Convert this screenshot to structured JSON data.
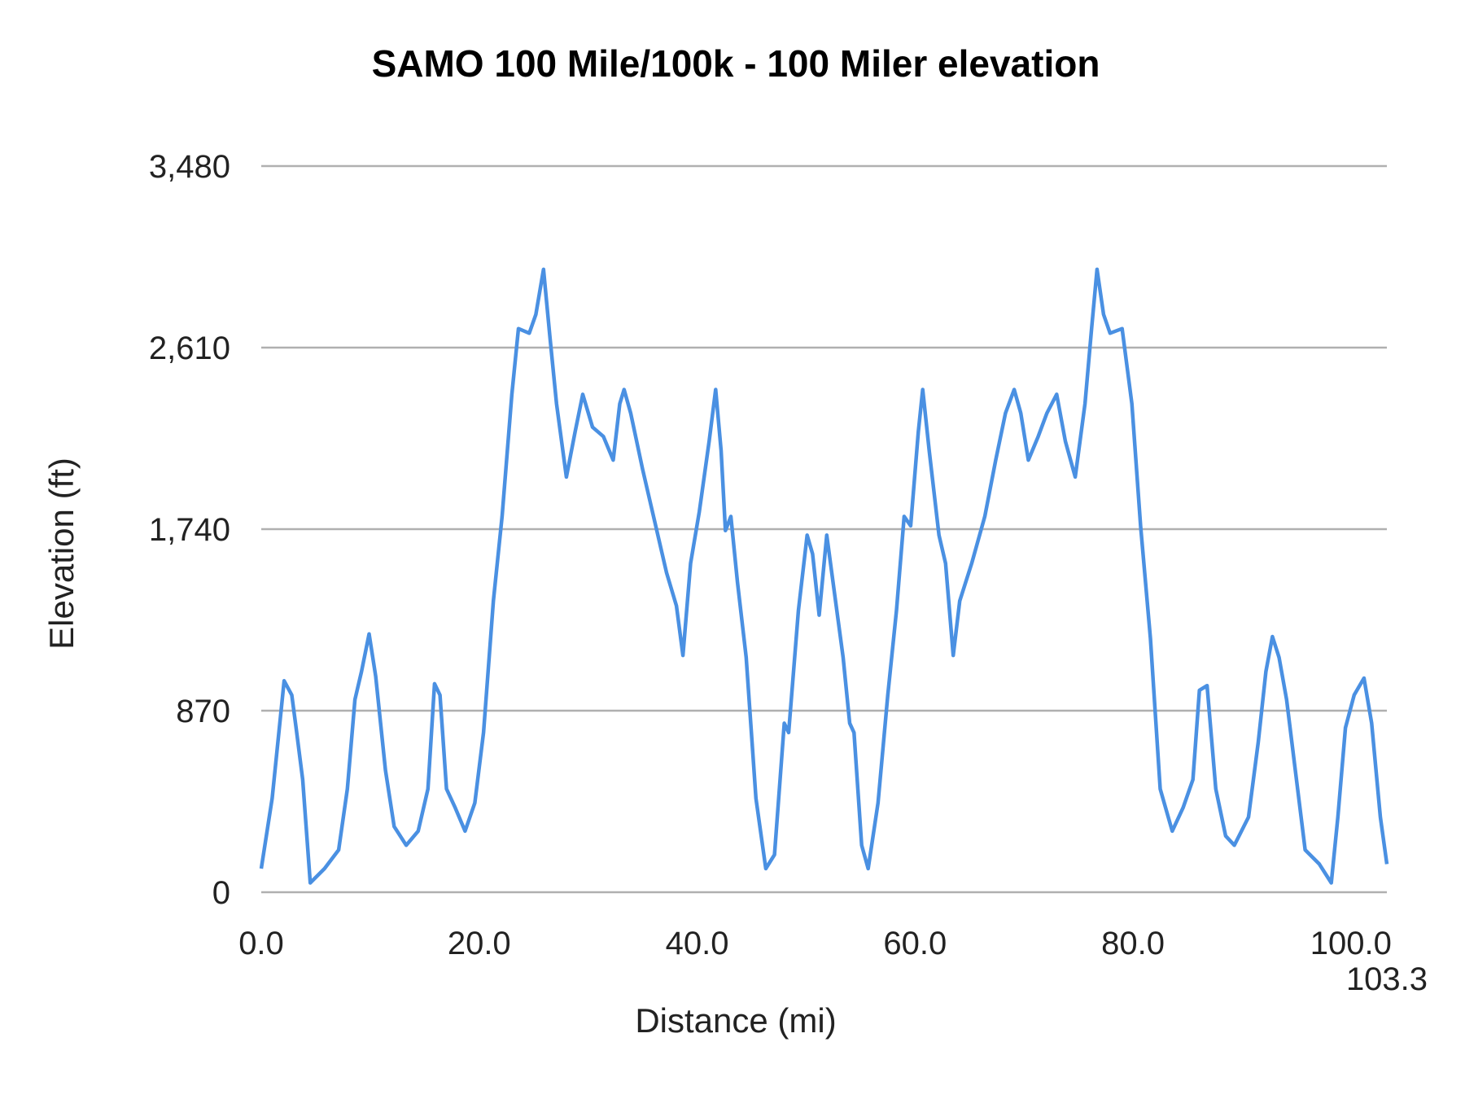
{
  "chart_data": {
    "type": "line",
    "title": "SAMO 100 Mile/100k - 100 Miler elevation",
    "xlabel": "Distance (mi)",
    "ylabel": "Elevation (ft)",
    "xlim": [
      0,
      103.3
    ],
    "ylim": [
      0,
      3480
    ],
    "x_ticks": [
      "0.0",
      "20.0",
      "40.0",
      "60.0",
      "80.0",
      "100.0",
      "103.3"
    ],
    "x_tick_values": [
      0,
      20,
      40,
      60,
      80,
      100,
      103.3
    ],
    "y_ticks": [
      "0",
      "870",
      "1,740",
      "2,610",
      "3,480"
    ],
    "y_tick_values": [
      0,
      870,
      1740,
      2610,
      3480
    ],
    "grid": "horizontal",
    "legend": "none",
    "color": "#4a90e2",
    "series": [
      {
        "x": [
          0,
          1.0,
          2.1,
          2.8,
          3.2,
          3.8,
          4.5,
          5.8,
          7.1,
          7.9,
          8.6,
          9.2,
          9.9,
          10.5,
          11.4,
          12.2,
          13.3,
          14.4,
          15.3,
          15.9,
          16.4,
          17.0,
          17.8,
          18.7,
          19.6,
          20.4,
          21.3,
          22.1,
          23.0,
          23.6,
          24.6,
          25.2,
          25.9,
          26.5,
          27.1,
          28.0,
          28.8,
          29.5,
          30.4,
          31.4,
          32.3,
          32.9,
          33.3,
          33.9,
          35.0,
          36.4,
          37.2,
          38.1,
          38.7,
          39.4,
          40.2,
          41.1,
          41.7,
          42.2,
          42.6,
          43.1,
          43.7,
          44.5,
          45.4,
          46.3,
          47.1,
          48.0,
          48.4,
          49.3,
          50.1,
          50.6,
          51.2,
          51.9,
          52.7,
          53.4,
          54.0,
          54.4,
          55.1,
          55.7,
          56.6,
          57.5,
          58.3,
          59.0,
          59.6,
          60.3,
          60.7,
          61.3,
          62.2,
          62.8,
          63.5,
          64.1,
          65.2,
          66.4,
          67.4,
          68.3,
          69.1,
          69.7,
          70.4,
          71.3,
          72.1,
          73.0,
          73.8,
          74.7,
          75.6,
          76.2,
          76.7,
          77.3,
          77.9,
          79.0,
          79.9,
          80.7,
          81.6,
          82.5,
          83.6,
          84.6,
          85.5,
          86.1,
          86.8,
          87.6,
          88.5,
          89.3,
          90.6,
          91.5,
          92.2,
          92.8,
          93.4,
          94.1,
          94.9,
          95.8,
          97.1,
          98.2,
          98.8,
          99.5,
          100.3,
          101.2,
          101.9,
          102.7,
          103.3
        ],
        "y": [
          113,
          450,
          1013,
          945,
          788,
          540,
          45,
          113,
          203,
          495,
          923,
          1058,
          1238,
          1035,
          585,
          315,
          225,
          293,
          495,
          999,
          945,
          495,
          405,
          293,
          428,
          765,
          1396,
          1801,
          2386,
          2701,
          2679,
          2769,
          2985,
          2656,
          2341,
          1990,
          2206,
          2386,
          2229,
          2184,
          2071,
          2341,
          2409,
          2296,
          2026,
          1711,
          1531,
          1373,
          1135,
          1576,
          1823,
          2161,
          2409,
          2116,
          1733,
          1801,
          1486,
          1126,
          450,
          113,
          180,
          810,
          765,
          1351,
          1711,
          1621,
          1328,
          1711,
          1396,
          1126,
          810,
          765,
          225,
          113,
          428,
          945,
          1351,
          1801,
          1756,
          2206,
          2409,
          2116,
          1711,
          1576,
          1135,
          1396,
          1576,
          1801,
          2071,
          2296,
          2409,
          2296,
          2071,
          2184,
          2296,
          2386,
          2161,
          1990,
          2341,
          2701,
          2985,
          2769,
          2679,
          2701,
          2341,
          1756,
          1216,
          495,
          293,
          405,
          540,
          968,
          990,
          495,
          270,
          225,
          360,
          720,
          1058,
          1225,
          1126,
          923,
          585,
          203,
          135,
          45,
          360,
          788,
          945,
          1026,
          810,
          360,
          135
        ]
      }
    ]
  }
}
